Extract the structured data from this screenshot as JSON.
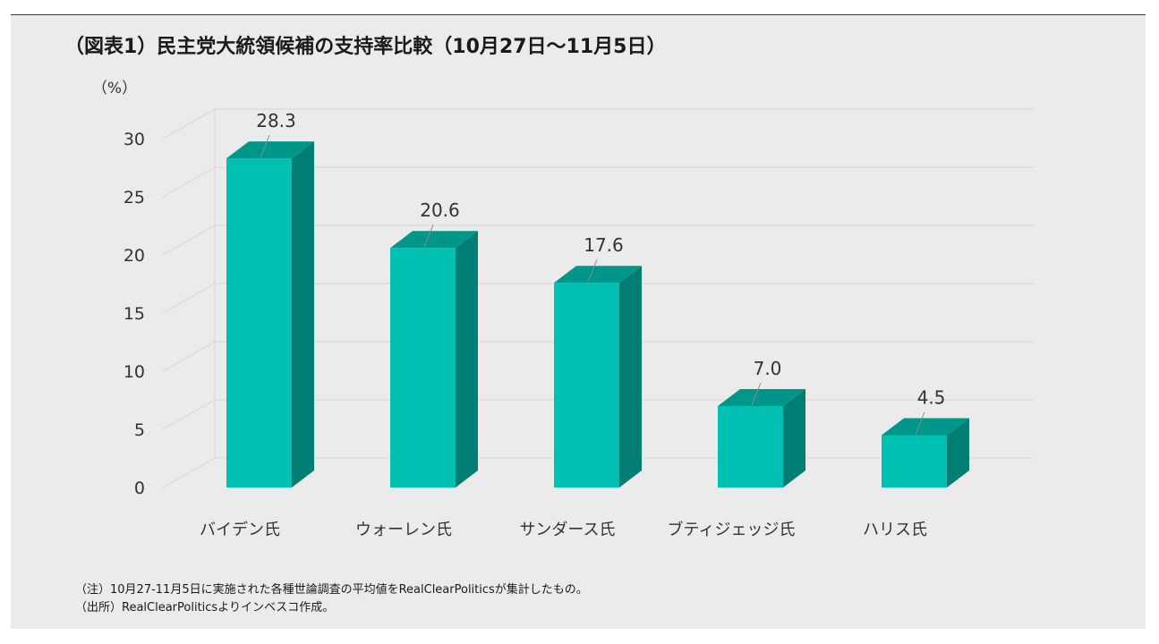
{
  "title": "（図表1）民主党大統領候補の支持率比較（10月27日～11月5日）",
  "notes": {
    "note": "（注）10月27-11月5日に実施された各種世論調査の平均値をRealClearPoliticsが集計したもの。",
    "source": "（出所）RealClearPoliticsよりインベスコ作成。"
  },
  "colors": {
    "bar_front": "#00c0b2",
    "bar_side": "#007e74",
    "bar_top": "#00968a",
    "grid": "#d4d4d4",
    "background": "#ebebeb"
  },
  "chart_data": {
    "type": "bar",
    "style": "3d-column",
    "categories": [
      "バイデン氏",
      "ウォーレン氏",
      "サンダース氏",
      "ブティジェッジ氏",
      "ハリス氏"
    ],
    "values": [
      28.3,
      20.6,
      17.6,
      7.0,
      4.5
    ],
    "data_labels": [
      "28.3",
      "20.6",
      "17.6",
      "7.0",
      "4.5"
    ],
    "ylabel": "（%）",
    "ylim": [
      0,
      30
    ],
    "yticks": [
      0,
      5,
      10,
      15,
      20,
      25,
      30
    ],
    "grid": true,
    "legend": "none"
  }
}
